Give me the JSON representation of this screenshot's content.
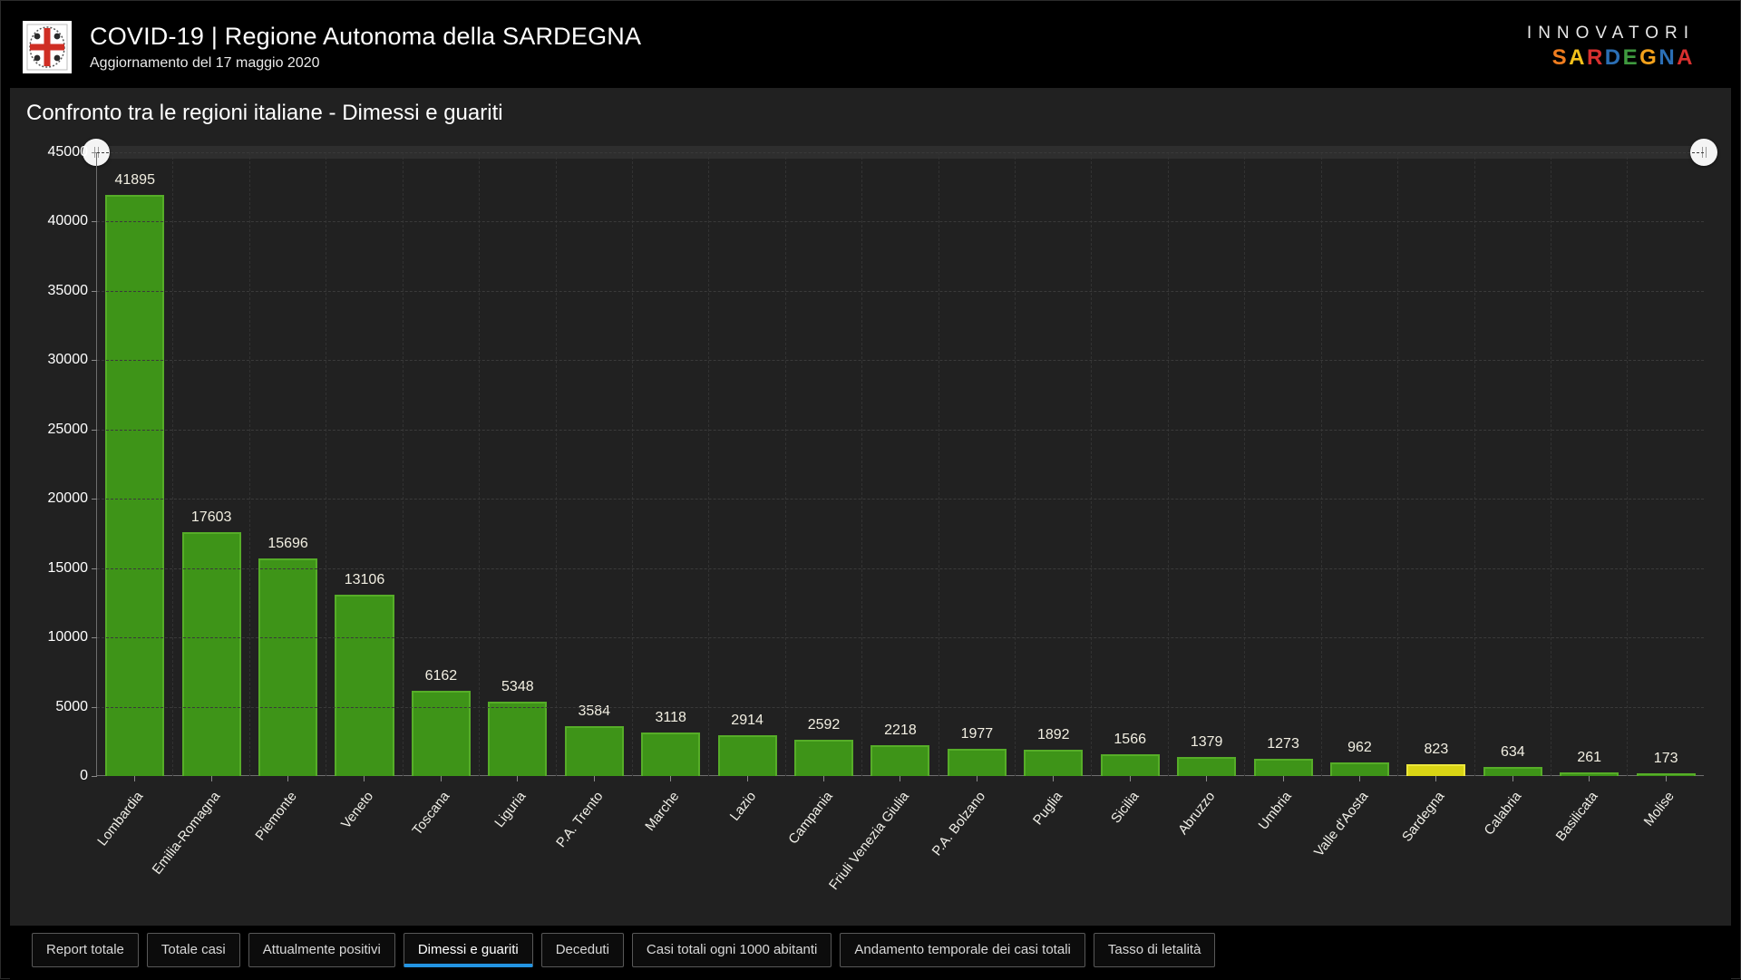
{
  "header": {
    "title": "COVID-19 | Regione Autonoma della SARDEGNA",
    "subtitle": "Aggiornamento del 17 maggio 2020",
    "brand_top": "INNOVATORI",
    "brand_letters": [
      {
        "ch": "S",
        "color": "#f07d1f"
      },
      {
        "ch": "A",
        "color": "#f3c11b"
      },
      {
        "ch": "R",
        "color": "#d8302f"
      },
      {
        "ch": "D",
        "color": "#2b6fb5"
      },
      {
        "ch": "E",
        "color": "#3f9a3f"
      },
      {
        "ch": "G",
        "color": "#f3a11b"
      },
      {
        "ch": "N",
        "color": "#2b6fb5"
      },
      {
        "ch": "A",
        "color": "#d8302f"
      }
    ]
  },
  "chart_data": {
    "type": "bar",
    "title": "Confronto tra le regioni italiane - Dimessi e guariti",
    "categories": [
      "Lombardia",
      "Emilia-Romagna",
      "Piemonte",
      "Veneto",
      "Toscana",
      "Liguria",
      "P.A. Trento",
      "Marche",
      "Lazio",
      "Campania",
      "Friuli Venezia Giulia",
      "P.A. Bolzano",
      "Puglia",
      "Sicilia",
      "Abruzzo",
      "Umbria",
      "Valle d'Aosta",
      "Sardegna",
      "Calabria",
      "Basilicata",
      "Molise"
    ],
    "values": [
      41895,
      17603,
      15696,
      13106,
      6162,
      5348,
      3584,
      3118,
      2914,
      2592,
      2218,
      1977,
      1892,
      1566,
      1379,
      1273,
      962,
      823,
      634,
      261,
      173
    ],
    "ylim": [
      0,
      45000
    ],
    "ytick_step": 5000,
    "grid": true,
    "value_labels": true,
    "legend": "none",
    "bar_color": "#3e9418",
    "bar_border_color": "#56ad28",
    "highlight_category": "Sardegna",
    "highlight_color": "#d9d414",
    "highlight_border_color": "#ecE73c"
  },
  "tabs": [
    {
      "label": "Report totale",
      "active": false
    },
    {
      "label": "Totale casi",
      "active": false
    },
    {
      "label": "Attualmente positivi",
      "active": false
    },
    {
      "label": "Dimessi e guariti",
      "active": true
    },
    {
      "label": "Deceduti",
      "active": false
    },
    {
      "label": "Casi totali ogni 1000 abitanti",
      "active": false
    },
    {
      "label": "Andamento temporale dei casi totali",
      "active": false
    },
    {
      "label": "Tasso di letalità",
      "active": false
    }
  ]
}
